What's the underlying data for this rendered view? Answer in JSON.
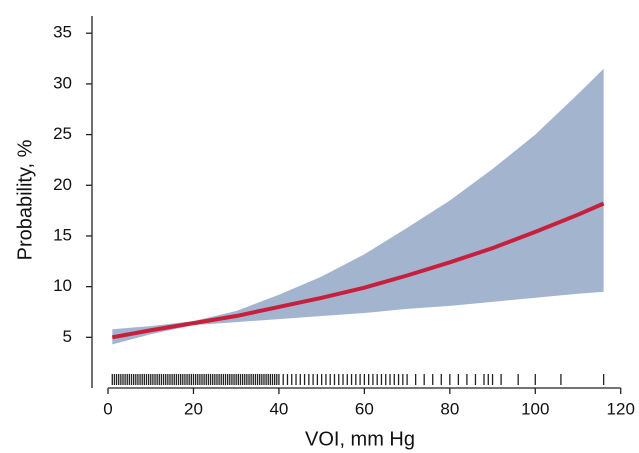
{
  "chart_data": {
    "type": "line",
    "x_label": "VOI, mm Hg",
    "y_label": "Probability, %",
    "x": [
      1,
      10,
      20,
      30,
      40,
      50,
      60,
      70,
      80,
      90,
      100,
      110,
      116
    ],
    "series": [
      {
        "color": "#c8203c",
        "values": [
          5.0,
          5.7,
          6.4,
          7.1,
          8.0,
          8.9,
          9.9,
          11.1,
          12.4,
          13.8,
          15.4,
          17.1,
          18.2
        ]
      }
    ],
    "band": {
      "color": "#a3b4cf",
      "lower": [
        4.3,
        5.3,
        6.2,
        6.5,
        6.8,
        7.1,
        7.4,
        7.8,
        8.1,
        8.5,
        8.9,
        9.3,
        9.5
      ],
      "upper": [
        5.8,
        6.1,
        6.6,
        7.6,
        9.2,
        11.0,
        13.2,
        15.8,
        18.5,
        21.6,
        25.0,
        29.0,
        31.5
      ]
    },
    "rug": [
      1,
      1.5,
      2,
      2.5,
      3,
      3.5,
      4,
      4.5,
      5,
      5.5,
      6,
      6.5,
      7,
      7.5,
      8,
      8.5,
      9,
      9.5,
      10,
      10.5,
      11,
      11.5,
      12,
      12.5,
      13,
      13.5,
      14,
      14.5,
      15,
      15.5,
      16,
      16.5,
      17,
      17.5,
      18,
      18.5,
      19,
      19.5,
      20,
      20.5,
      21,
      21.5,
      22,
      22.5,
      23,
      23.5,
      24,
      24.5,
      25,
      25.5,
      26,
      26.5,
      27,
      27.5,
      28,
      28.5,
      29,
      29.5,
      30,
      30.5,
      31,
      31.5,
      32,
      32.5,
      33,
      33.5,
      34,
      34.5,
      35,
      35.5,
      36,
      36.5,
      37,
      37.5,
      38,
      38.5,
      39,
      39.5,
      40,
      41,
      42,
      43,
      44,
      45,
      46,
      47,
      48,
      49,
      50,
      51,
      52,
      53,
      54,
      55,
      56,
      57,
      58,
      59,
      60,
      61,
      62,
      63,
      64,
      65,
      66,
      67,
      68,
      69,
      70,
      72,
      74,
      76,
      78,
      80,
      82,
      84,
      86,
      88,
      89,
      90,
      92,
      96,
      100,
      106,
      116
    ],
    "xlim": [
      -3.75,
      121
    ],
    "ylim": [
      0,
      36.7
    ],
    "xticks": [
      0,
      20,
      40,
      60,
      80,
      100,
      120
    ],
    "yticks": [
      5,
      10,
      15,
      20,
      25,
      30,
      35
    ]
  }
}
